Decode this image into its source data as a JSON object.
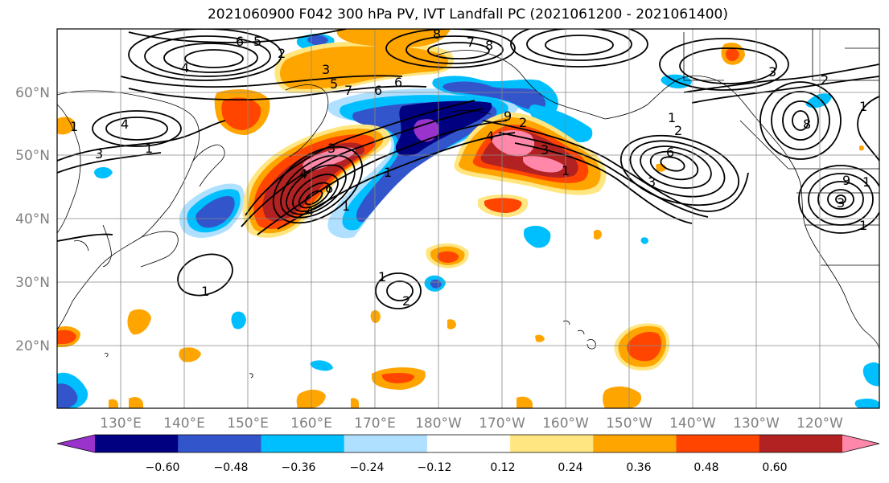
{
  "title": "2021060900 F042 300 hPa PV, IVT Landfall PC (2021061200 - 2021061400)",
  "lat_labels": [
    "60°N",
    "50°N",
    "40°N",
    "30°N",
    "20°N"
  ],
  "lon_labels": [
    "130°E",
    "140°E",
    "150°E",
    "160°E",
    "170°E",
    "180°W",
    "170°W",
    "160°W",
    "150°W",
    "140°W",
    "130°W",
    "120°W"
  ],
  "colorbar": {
    "ticks": [
      "−0.60",
      "−0.48",
      "−0.36",
      "−0.24",
      "−0.12",
      "0.12",
      "0.24",
      "0.36",
      "0.48",
      "0.60"
    ],
    "colors": [
      "#9933cc",
      "#000080",
      "#3355cc",
      "#00bfff",
      "#b0e0ff",
      "#ffffff",
      "#ffe680",
      "#ffa500",
      "#ff4500",
      "#b22222",
      "#ff88aa"
    ]
  },
  "contour_labels": [
    "6",
    "5",
    "2",
    "3",
    "4",
    "1",
    "3",
    "1",
    "6",
    "8",
    "7",
    "8",
    "4",
    "5",
    "6",
    "7",
    "9",
    "2",
    "4",
    "3",
    "1",
    "6",
    "1",
    "2",
    "3",
    "3",
    "1",
    "1",
    "1",
    "2",
    "4",
    "1",
    "3",
    "1",
    "4",
    "6",
    "3",
    "8",
    "9",
    "1",
    "2",
    "1"
  ]
}
